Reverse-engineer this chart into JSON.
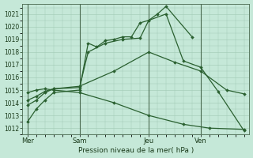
{
  "xlabel": "Pression niveau de la mer( hPa )",
  "bg_color": "#c5e8d8",
  "grid_color": "#a0c8b4",
  "line_color": "#2a6030",
  "spine_color": "#4a6a50",
  "ylim": [
    1011.5,
    1021.8
  ],
  "yticks": [
    1012,
    1013,
    1014,
    1015,
    1016,
    1017,
    1018,
    1019,
    1020,
    1021
  ],
  "xtick_labels": [
    "Mer",
    "Sam",
    "Jeu",
    "Ven"
  ],
  "xtick_positions": [
    0,
    3,
    7,
    10
  ],
  "xlim": [
    -0.3,
    12.8
  ],
  "vlines": [
    0,
    3,
    7,
    10
  ],
  "series": [
    {
      "x": [
        0,
        0.5,
        1.0,
        1.5,
        3.0,
        3.5,
        4.0,
        4.5,
        5.0,
        5.5,
        6.0,
        6.5,
        7.0,
        7.5,
        8.0,
        9.5
      ],
      "y": [
        1012.5,
        1013.5,
        1014.2,
        1014.8,
        1015.0,
        1018.7,
        1018.4,
        1018.9,
        1019.0,
        1019.2,
        1019.2,
        1020.3,
        1020.5,
        1021.0,
        1021.6,
        1019.2
      ]
    },
    {
      "x": [
        0,
        0.5,
        1.0,
        1.5,
        3.0,
        3.5,
        4.5,
        5.5,
        6.5,
        7.0,
        8.0,
        9.0,
        10.0,
        11.0,
        12.5
      ],
      "y": [
        1013.8,
        1014.2,
        1014.8,
        1015.1,
        1015.2,
        1018.0,
        1018.7,
        1019.0,
        1019.1,
        1020.5,
        1021.0,
        1017.3,
        1016.8,
        1014.9,
        1011.8
      ]
    },
    {
      "x": [
        0,
        0.5,
        1.0,
        1.5,
        3.0,
        5.0,
        7.0,
        8.5,
        10.0,
        11.5,
        12.5
      ],
      "y": [
        1014.2,
        1014.5,
        1014.9,
        1015.1,
        1015.3,
        1016.5,
        1018.0,
        1017.2,
        1016.5,
        1015.0,
        1014.7
      ]
    },
    {
      "x": [
        0,
        0.5,
        1.0,
        1.5,
        3.0,
        5.0,
        7.0,
        9.0,
        10.5,
        12.5
      ],
      "y": [
        1014.8,
        1015.0,
        1015.1,
        1015.0,
        1014.8,
        1014.0,
        1013.0,
        1012.3,
        1012.0,
        1011.9
      ]
    }
  ]
}
